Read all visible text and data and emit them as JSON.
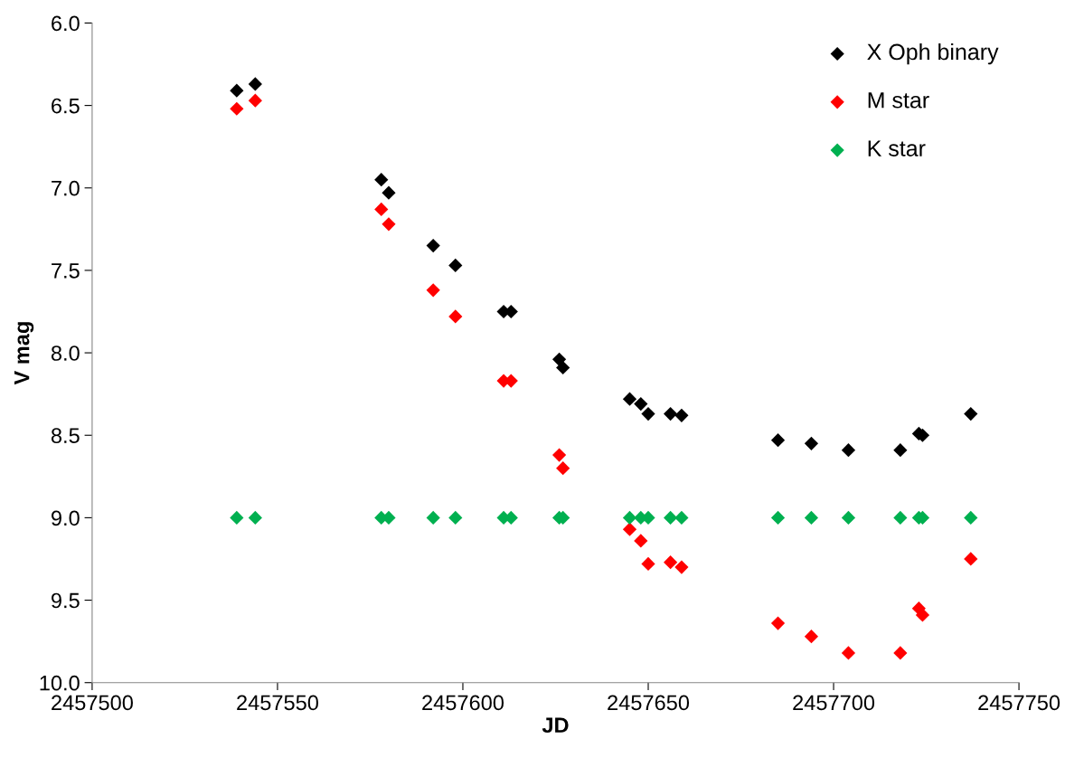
{
  "chart_data": {
    "type": "scatter",
    "xlabel": "JD",
    "ylabel": "V mag",
    "marker": "diamond",
    "legend": "top right",
    "grid": false,
    "x": [
      2457539,
      2457544,
      2457578,
      2457580,
      2457592,
      2457598,
      2457611,
      2457613,
      2457626,
      2457627,
      2457645,
      2457648,
      2457650,
      2457656,
      2457659,
      2457685,
      2457694,
      2457704,
      2457718,
      2457723,
      2457724,
      2457737
    ],
    "series": [
      {
        "name": "X Oph binary",
        "color": "#000000",
        "values": [
          6.41,
          6.37,
          6.95,
          7.03,
          7.35,
          7.47,
          7.75,
          7.75,
          8.04,
          8.09,
          8.28,
          8.31,
          8.37,
          8.37,
          8.38,
          8.53,
          8.55,
          8.59,
          8.59,
          8.49,
          8.5,
          8.37
        ]
      },
      {
        "name": "M star",
        "color": "#ff0000",
        "values": [
          6.52,
          6.47,
          7.13,
          7.22,
          7.62,
          7.78,
          8.17,
          8.17,
          8.62,
          8.7,
          9.07,
          9.14,
          9.28,
          9.27,
          9.3,
          9.64,
          9.72,
          9.82,
          9.82,
          9.55,
          9.59,
          9.25
        ]
      },
      {
        "name": "K star",
        "color": "#00b050",
        "values": [
          9.0,
          9.0,
          9.0,
          9.0,
          9.0,
          9.0,
          9.0,
          9.0,
          9.0,
          9.0,
          9.0,
          9.0,
          9.0,
          9.0,
          9.0,
          9.0,
          9.0,
          9.0,
          9.0,
          9.0,
          9.0,
          9.0
        ]
      }
    ],
    "xlim": [
      2457500,
      2457750
    ],
    "xticks": [
      2457500,
      2457550,
      2457600,
      2457650,
      2457700,
      2457750
    ],
    "ylim": [
      10.0,
      6.0
    ],
    "yticks": [
      {
        "value": 6,
        "label": "6.0"
      },
      {
        "value": 6.5,
        "label": "6.5"
      },
      {
        "value": 7,
        "label": "7.0"
      },
      {
        "value": 7.5,
        "label": "7.5"
      },
      {
        "value": 8,
        "label": "8.0"
      },
      {
        "value": 8.5,
        "label": "8.5"
      },
      {
        "value": 9,
        "label": "9.0"
      },
      {
        "value": 9.5,
        "label": "9.5"
      },
      {
        "value": 10,
        "label": "10.0"
      }
    ]
  }
}
